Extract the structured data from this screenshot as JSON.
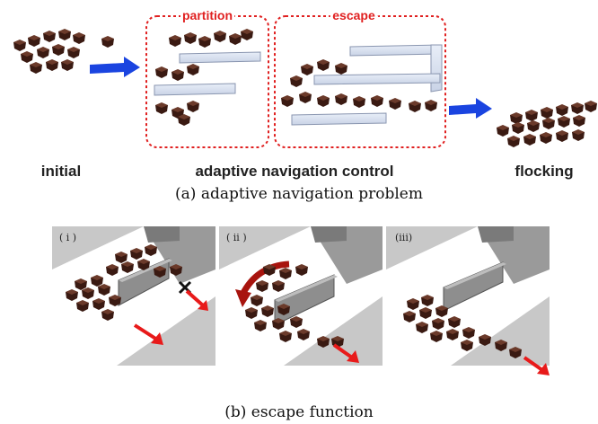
{
  "top": {
    "partition_label": "partition",
    "escape_label": "escape",
    "initial_label": "initial",
    "control_label": "adaptive navigation control",
    "flocking_label": "flocking",
    "caption": "(a) adaptive navigation problem"
  },
  "bottom": {
    "panels": [
      {
        "label": "( i )"
      },
      {
        "label": "( ii )"
      },
      {
        "label": "(iii)"
      }
    ],
    "caption": "(b) escape function"
  },
  "colors": {
    "agent": "#3a1a12",
    "dashed_box": "#e02020",
    "flow_arrow": "#1a44e0",
    "motion_arrow": "#e81a1a",
    "wall": "#c9d3e6"
  }
}
